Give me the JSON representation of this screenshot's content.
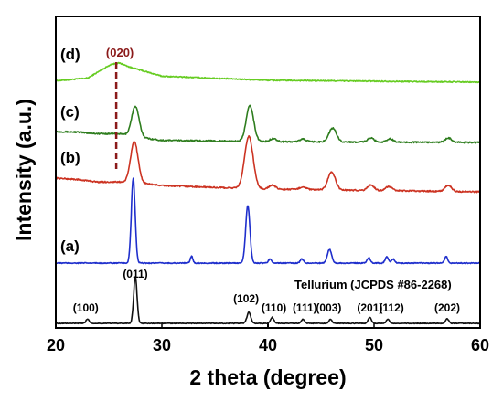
{
  "chart_data": {
    "type": "line",
    "xlabel": "2 theta (degree)",
    "ylabel": "Intensity (a.u.)",
    "xlim": [
      20,
      60
    ],
    "xticks": [
      "20",
      "30",
      "40",
      "50",
      "60"
    ],
    "y_units": "arbitrary (stacked offsets)",
    "reference_title": "Tellurium (JCPDS #86-2268)",
    "annotation": {
      "label": "(020)",
      "x": 25.7
    },
    "series": [
      {
        "name": "(d)",
        "color": "#66cc22",
        "offset": 88,
        "noise": 0.4,
        "background": [
          [
            20,
            0.5
          ],
          [
            23,
            1.5
          ],
          [
            25.2,
            6.5
          ],
          [
            26,
            7
          ],
          [
            27,
            5.5
          ],
          [
            30,
            2.2
          ],
          [
            40,
            0.7
          ],
          [
            60,
            0
          ]
        ],
        "peaks": []
      },
      {
        "name": "(c)",
        "color": "#2e7d1e",
        "offset": 66,
        "noise": 0.5,
        "background": [
          [
            20,
            4
          ],
          [
            22,
            3.8
          ],
          [
            24,
            3.2
          ],
          [
            26,
            3.2
          ],
          [
            28,
            1.8
          ],
          [
            30,
            0.8
          ],
          [
            40,
            0.3
          ],
          [
            60,
            0
          ]
        ],
        "peaks": [
          {
            "x": 27.5,
            "h": 11,
            "w": 0.35
          },
          {
            "x": 38.3,
            "h": 13,
            "w": 0.35
          },
          {
            "x": 40.5,
            "h": 1.2,
            "w": 0.3
          },
          {
            "x": 43.3,
            "h": 1,
            "w": 0.3
          },
          {
            "x": 46.1,
            "h": 5,
            "w": 0.35
          },
          {
            "x": 49.7,
            "h": 1.5,
            "w": 0.3
          },
          {
            "x": 51.5,
            "h": 1.2,
            "w": 0.3
          },
          {
            "x": 57,
            "h": 1.6,
            "w": 0.3
          }
        ]
      },
      {
        "name": "(b)",
        "color": "#cc3322",
        "offset": 48,
        "noise": 0.5,
        "background": [
          [
            20,
            5
          ],
          [
            22,
            4.5
          ],
          [
            24,
            3.6
          ],
          [
            26,
            3.6
          ],
          [
            28,
            3.2
          ],
          [
            30,
            2.3
          ],
          [
            35,
            1.6
          ],
          [
            40,
            1
          ],
          [
            50,
            0.5
          ],
          [
            60,
            0
          ]
        ],
        "peaks": [
          {
            "x": 27.4,
            "h": 15,
            "w": 0.35
          },
          {
            "x": 38.2,
            "h": 19,
            "w": 0.4
          },
          {
            "x": 40.4,
            "h": 1.5,
            "w": 0.3
          },
          {
            "x": 43.3,
            "h": 1,
            "w": 0.3
          },
          {
            "x": 46,
            "h": 6.5,
            "w": 0.35
          },
          {
            "x": 49.7,
            "h": 2,
            "w": 0.3
          },
          {
            "x": 51.4,
            "h": 1.5,
            "w": 0.3
          },
          {
            "x": 57,
            "h": 2.3,
            "w": 0.3
          }
        ]
      },
      {
        "name": "(a)",
        "color": "#1f2fcc",
        "offset": 22,
        "noise": 0.35,
        "background": [
          [
            20,
            0
          ],
          [
            60,
            0
          ]
        ],
        "peaks": [
          {
            "x": 27.3,
            "h": 31,
            "w": 0.18
          },
          {
            "x": 32.8,
            "h": 2.5,
            "w": 0.12
          },
          {
            "x": 38.1,
            "h": 21,
            "w": 0.2
          },
          {
            "x": 40.2,
            "h": 1.5,
            "w": 0.15
          },
          {
            "x": 43.2,
            "h": 1.5,
            "w": 0.15
          },
          {
            "x": 45.8,
            "h": 5,
            "w": 0.2
          },
          {
            "x": 49.5,
            "h": 2,
            "w": 0.15
          },
          {
            "x": 51.2,
            "h": 2.3,
            "w": 0.15
          },
          {
            "x": 51.8,
            "h": 1.5,
            "w": 0.15
          },
          {
            "x": 56.8,
            "h": 2.3,
            "w": 0.15
          }
        ]
      },
      {
        "name": "Tellurium (JCPDS #86-2268)",
        "color": "#111111",
        "offset": 0,
        "noise": 0.25,
        "background": [
          [
            20,
            0
          ],
          [
            60,
            0
          ]
        ],
        "peaks": [
          {
            "x": 23.0,
            "h": 1.6,
            "w": 0.15
          },
          {
            "x": 27.5,
            "h": 17,
            "w": 0.16
          },
          {
            "x": 38.2,
            "h": 4,
            "w": 0.18
          },
          {
            "x": 40.4,
            "h": 2.2,
            "w": 0.15
          },
          {
            "x": 43.3,
            "h": 1.5,
            "w": 0.15
          },
          {
            "x": 45.9,
            "h": 1.5,
            "w": 0.15
          },
          {
            "x": 49.6,
            "h": 2.2,
            "w": 0.15
          },
          {
            "x": 51.3,
            "h": 1.5,
            "w": 0.15
          },
          {
            "x": 56.9,
            "h": 1.7,
            "w": 0.15
          }
        ]
      }
    ],
    "reference_peaks": [
      {
        "label": "(100)",
        "x": 23.0
      },
      {
        "label": "(011)",
        "x": 27.5
      },
      {
        "label": "(102)",
        "x": 38.2
      },
      {
        "label": "(110)",
        "x": 40.4
      },
      {
        "label": "(111)",
        "x": 43.3
      },
      {
        "label": "(003)",
        "x": 45.9
      },
      {
        "label": "(201)",
        "x": 49.6
      },
      {
        "label": "(112)",
        "x": 51.3
      },
      {
        "label": "(202)",
        "x": 56.9
      }
    ]
  }
}
